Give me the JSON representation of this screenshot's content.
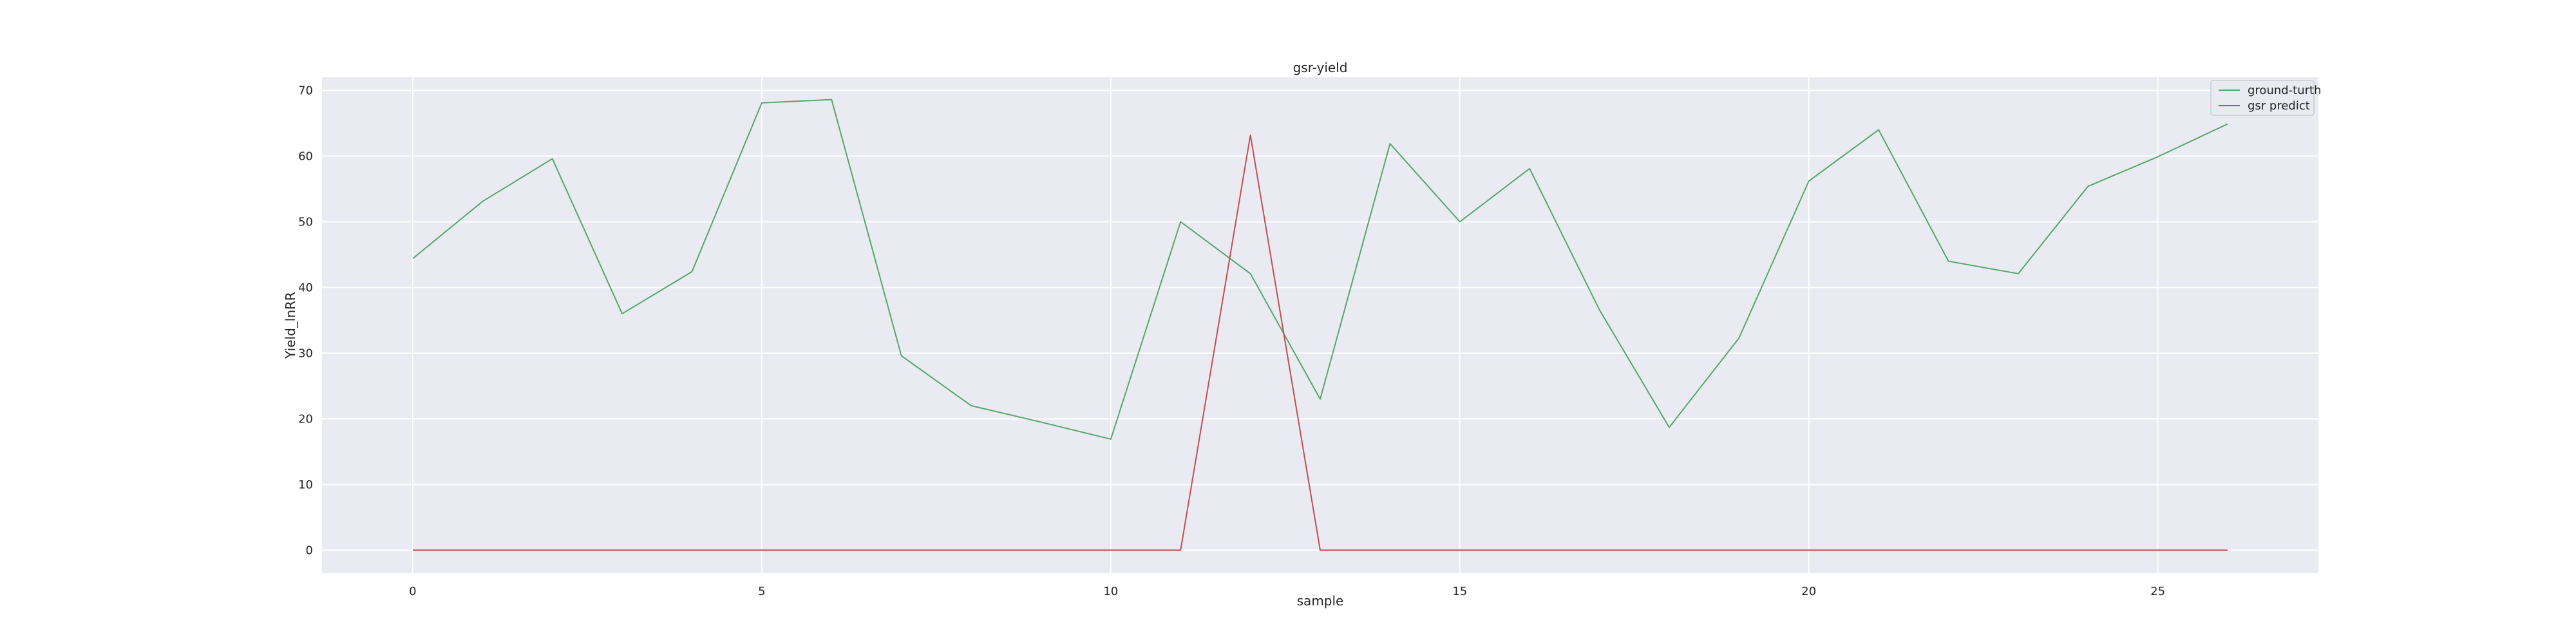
{
  "chart_data": {
    "type": "line",
    "title": "gsr-yield",
    "xlabel": "sample",
    "ylabel": "Yield_lnRR",
    "xlim": [
      -1.3,
      27.3
    ],
    "ylim": [
      -3.5,
      72
    ],
    "xticks": [
      0,
      5,
      10,
      15,
      20,
      25
    ],
    "yticks": [
      0,
      10,
      20,
      30,
      40,
      50,
      60,
      70
    ],
    "grid": true,
    "legend_position": "top-right",
    "x": [
      0,
      1,
      2,
      3,
      4,
      5,
      6,
      7,
      8,
      9,
      10,
      11,
      12,
      13,
      14,
      15,
      16,
      17,
      18,
      19,
      20,
      21,
      22,
      23,
      24,
      25,
      26
    ],
    "series": [
      {
        "name": "ground-turth",
        "color": "#55a868",
        "values": [
          44.4,
          53.1,
          59.6,
          36.0,
          42.4,
          68.1,
          68.6,
          29.6,
          22.0,
          19.5,
          16.9,
          50.0,
          42.1,
          23.0,
          61.9,
          50.0,
          58.1,
          36.6,
          18.7,
          32.3,
          56.2,
          64.0,
          44.0,
          42.1,
          55.4,
          59.9,
          64.9
        ]
      },
      {
        "name": "gsr predict",
        "color": "#c44e52",
        "values": [
          0,
          0,
          0,
          0,
          0,
          0,
          0,
          0,
          0,
          0,
          0,
          0,
          63.2,
          0,
          0,
          0,
          0,
          0,
          0,
          0,
          0,
          0,
          0,
          0,
          0,
          0,
          0
        ]
      }
    ]
  }
}
